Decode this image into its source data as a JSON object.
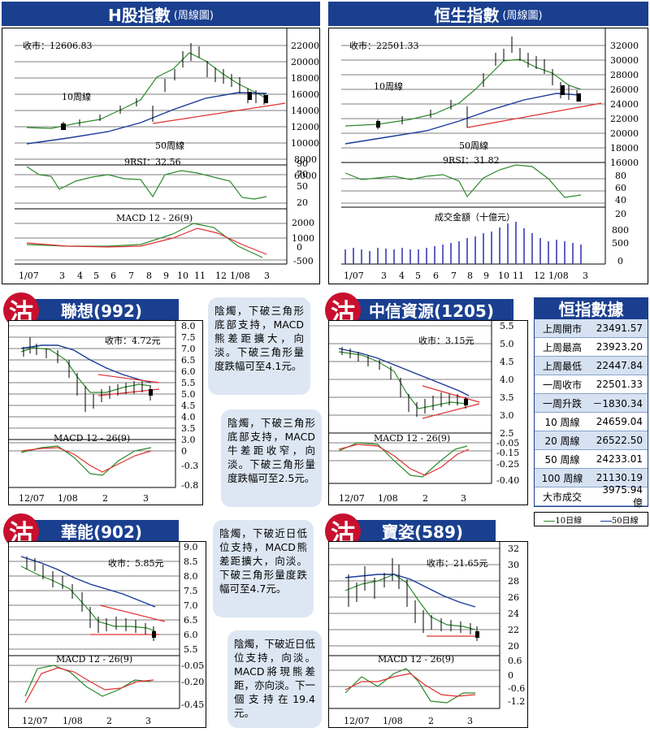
{
  "colors": {
    "navy": "#1a3f8f",
    "ma10": "#2c8a2c",
    "ma50": "#1a3a9a",
    "trend": "#e03030",
    "sell": "#c8102e",
    "note_bg": "#dde7f3"
  },
  "hshares": {
    "title": "H股指數",
    "subtitle": "(周線圖)",
    "close_label": "收市：12606.83",
    "ma10_label": "10周線",
    "ma50_label": "50周線",
    "rsi_label": "9RSI：32.56",
    "macd_label": "MACD 12 - 26(9)",
    "y_ticks": [
      "22000",
      "20000",
      "18000",
      "16000",
      "14000",
      "12000",
      "10000",
      "8000",
      "6000"
    ],
    "rsi_ticks": [
      "90",
      "70",
      "50",
      "20"
    ],
    "macd_ticks": [
      "2000",
      "1000",
      "0",
      "-500"
    ],
    "x_ticks": [
      "1/07",
      "3",
      "4",
      "5",
      "6",
      "7",
      "8",
      "9",
      "10",
      "11",
      "12",
      "1/08",
      "3"
    ]
  },
  "hsi": {
    "title": "恒生指數",
    "subtitle": "(周線圖)",
    "close_label": "收市：22501.33",
    "ma10_label": "10周線",
    "ma50_label": "50周線",
    "rsi_label": "9RSI：31.82",
    "vol_label": "成交金額（十億元）",
    "y_ticks": [
      "32000",
      "30000",
      "28000",
      "26000",
      "24000",
      "22000",
      "20000",
      "18000",
      "16000"
    ],
    "rsi_ticks": [
      "80",
      "60",
      "40",
      "20"
    ],
    "vol_ticks": [
      "800",
      "500",
      "0"
    ],
    "x_ticks": [
      "1/07",
      "3",
      "4",
      "5",
      "6",
      "7",
      "8",
      "9",
      "10",
      "11",
      "12",
      "1/08",
      "3"
    ]
  },
  "sell_glyph": "沽",
  "lenovo": {
    "title": "聯想(992)",
    "close_label": "收市：4.72元",
    "macd_label": "MACD 12 - 26(9)",
    "y_ticks": [
      "8.0",
      "7.5",
      "7.0",
      "6.5",
      "6.0",
      "5.5",
      "5.0",
      "4.5",
      "4.0",
      "3.5",
      "3.0"
    ],
    "macd_ticks": [
      "0",
      "-0.3",
      "-0.8"
    ],
    "x_ticks": [
      "12/07",
      "1/08",
      "2",
      "3"
    ],
    "note": "陰燭，下破三角形底部支持，MACD熊差距擴大，向淡。下破三角形量度跌幅可至4.1元。"
  },
  "citic": {
    "title": "中信資源(1205)",
    "close_label": "收市：3.15元",
    "macd_label": "MACD 12 - 26(9)",
    "y_ticks": [
      "5.5",
      "5.0",
      "4.5",
      "4.0",
      "3.5",
      "3.0",
      "2.5"
    ],
    "macd_ticks": [
      "-0.05",
      "-0.15",
      "-0.25",
      "-0.40"
    ],
    "x_ticks": [
      "12/07",
      "1/08",
      "2",
      "3"
    ],
    "note": "陰燭，下破三角形底部支持，MACD牛差距收窄，向淡。下破三角形量度跌幅可至2.5元。"
  },
  "huaneng": {
    "title": "華能(902)",
    "close_label": "收市：5.85元",
    "macd_label": "MACD 12 - 26(9)",
    "y_ticks": [
      "9.0",
      "8.5",
      "8.0",
      "7.5",
      "7.0",
      "6.5",
      "6.0",
      "5.5"
    ],
    "macd_ticks": [
      "-0.05",
      "-0.20",
      "-0.45"
    ],
    "x_ticks": [
      "12/07",
      "1/08",
      "2",
      "3"
    ],
    "note": "陰燭，下破近日低位支持，MACD熊差距擴大，向淡。下破三角形量度跌幅可至4.7元。"
  },
  "poushen": {
    "title": "寶姿(589)",
    "close_label": "收市：21.65元",
    "macd_label": "MACD 12 - 26(9)",
    "y_ticks": [
      "32",
      "30",
      "28",
      "26",
      "24",
      "22",
      "20"
    ],
    "macd_ticks": [
      "0.6",
      "0",
      "-0.6",
      "-1.2"
    ],
    "x_ticks": [
      "12/07",
      "1/08",
      "2",
      "3"
    ],
    "note": "陰燭，下破近日低位支持，向淡。MACD將現熊差距，亦向淡。下一個支持在19.4元。"
  },
  "hsi_data": {
    "title": "恒指數據",
    "rows": [
      {
        "label": "上周開市",
        "value": "23491.57"
      },
      {
        "label": "上周最高",
        "value": "23923.20"
      },
      {
        "label": "上周最低",
        "value": "22447.84"
      },
      {
        "label": "一周收市",
        "value": "22501.33"
      },
      {
        "label": "一周升跌",
        "value": "－1830.34"
      },
      {
        "label": "10 周線",
        "value": "24659.04"
      },
      {
        "label": "20 周線",
        "value": "26522.50"
      },
      {
        "label": "50 周線",
        "value": "24233.01"
      },
      {
        "label": "100 周線",
        "value": "21130.19"
      },
      {
        "label": "大市成交",
        "value": "3975.94 億"
      }
    ]
  },
  "legend": {
    "ma10": "10日線",
    "ma50": "50日線"
  }
}
